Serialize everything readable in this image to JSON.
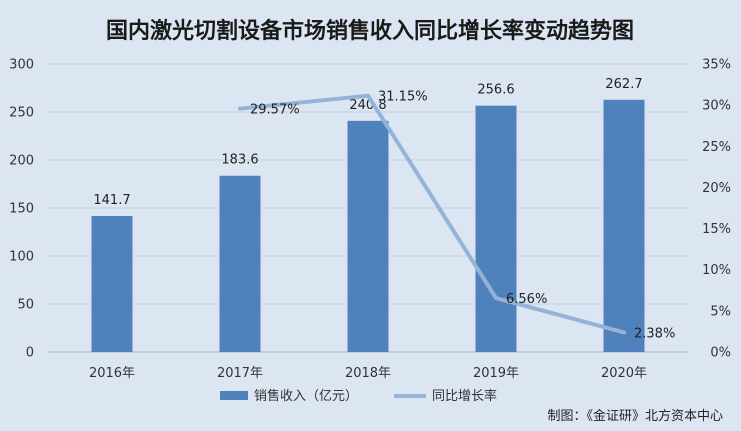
{
  "chart_data": {
    "type": "bar",
    "title": "国内激光切割设备市场销售收入同比增长率变动趋势图",
    "categories": [
      "2016年",
      "2017年",
      "2018年",
      "2019年",
      "2020年"
    ],
    "series": [
      {
        "name": "销售收入（亿元）",
        "type": "bar",
        "axis": "left",
        "values": [
          141.7,
          183.6,
          240.8,
          256.6,
          262.7
        ],
        "labels": [
          "141.7",
          "183.6",
          "240.8",
          "256.6",
          "262.7"
        ],
        "color": "#4f81bd"
      },
      {
        "name": "同比增长率",
        "type": "line",
        "axis": "right",
        "values": [
          null,
          29.57,
          31.15,
          6.56,
          2.38
        ],
        "labels": [
          "",
          "29.57%",
          "31.15%",
          "6.56%",
          "2.38%"
        ],
        "color": "#95b3d7"
      }
    ],
    "y_left": {
      "range": [
        0,
        300
      ],
      "ticks": [
        "0",
        "50",
        "100",
        "150",
        "200",
        "250",
        "300"
      ]
    },
    "y_right": {
      "range": [
        0,
        35
      ],
      "ticks": [
        "0%",
        "5%",
        "10%",
        "15%",
        "20%",
        "25%",
        "30%",
        "35%"
      ]
    },
    "grid": true,
    "legend_position": "bottom",
    "background_color": "#dce6f2"
  },
  "source": "制图：《金证研》北方资本中心"
}
